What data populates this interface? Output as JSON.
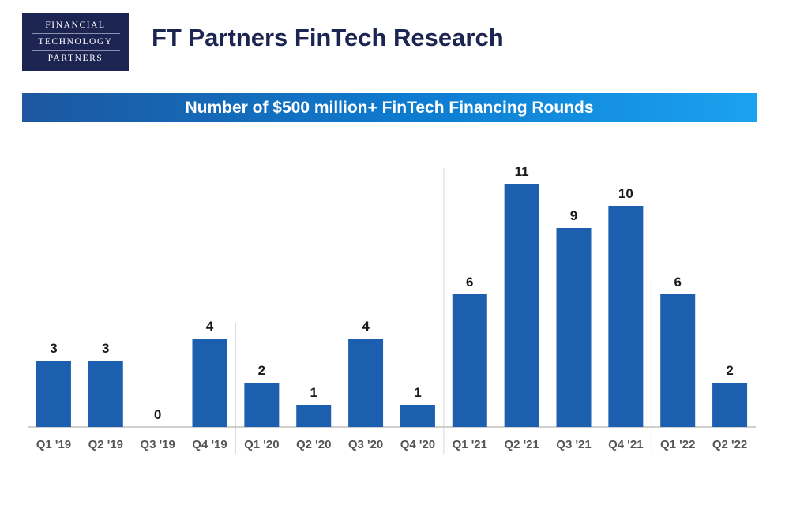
{
  "logo": {
    "line1": "FINANCIAL",
    "line2": "TECHNOLOGY",
    "line3": "PARTNERS"
  },
  "header": {
    "title": "FT Partners FinTech Research"
  },
  "colors": {
    "logo_bg": "#1c2452",
    "bar": "#1b5fae",
    "banner_start": "#1d57a0",
    "banner_end": "#1ba2ee"
  },
  "chart_data": {
    "type": "bar",
    "title": "Number of $500 million+ FinTech Financing Rounds",
    "xlabel": "",
    "ylabel": "",
    "ylim": [
      0,
      11
    ],
    "grid": false,
    "data_labels": true,
    "year_separators": true,
    "categories": [
      "Q1 '19",
      "Q2 '19",
      "Q3 '19",
      "Q4 '19",
      "Q1 '20",
      "Q2 '20",
      "Q3 '20",
      "Q4 '20",
      "Q1 '21",
      "Q2 '21",
      "Q3 '21",
      "Q4 '21",
      "Q1 '22",
      "Q2 '22"
    ],
    "values": [
      3,
      3,
      0,
      4,
      2,
      1,
      4,
      1,
      6,
      11,
      9,
      10,
      6,
      2
    ]
  }
}
